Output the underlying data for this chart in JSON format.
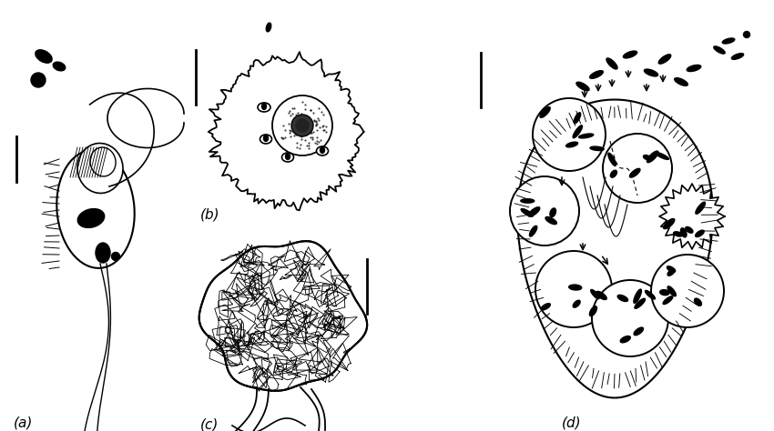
{
  "bg_color": "#ffffff",
  "line_color": "#000000",
  "label_a": "(a)",
  "label_b": "(b)",
  "label_c": "(c)",
  "label_d": "(d)",
  "figsize": [
    8.5,
    4.74
  ],
  "dpi": 100
}
